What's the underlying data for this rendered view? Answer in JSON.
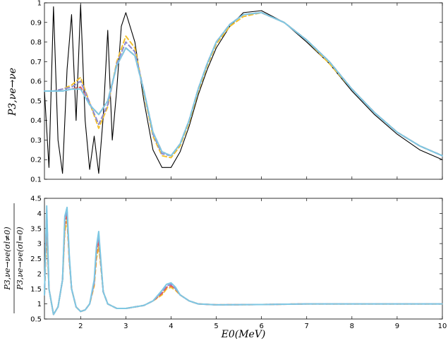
{
  "chart_data": [
    {
      "type": "line",
      "ylabel": "P3,νe→νe",
      "xlim": [
        1.2,
        10
      ],
      "ylim": [
        0.1,
        1.0
      ],
      "x_ticks": [
        "2",
        "3",
        "4",
        "5",
        "6",
        "7",
        "8",
        "9",
        "10"
      ],
      "y_ticks": [
        "0.1",
        "0.2",
        "0.3",
        "0.4",
        "0.5",
        "0.6",
        "0.7",
        "0.8",
        "0.9",
        "1"
      ],
      "grid": false,
      "series": [
        {
          "color": "#000000",
          "style": "solid",
          "x": [
            1.2,
            1.3,
            1.4,
            1.5,
            1.6,
            1.7,
            1.8,
            1.9,
            2.0,
            2.1,
            2.2,
            2.3,
            2.4,
            2.5,
            2.6,
            2.7,
            2.8,
            2.9,
            3.0,
            3.2,
            3.4,
            3.6,
            3.8,
            4.0,
            4.2,
            4.4,
            4.6,
            4.8,
            5.0,
            5.3,
            5.6,
            6.0,
            6.5,
            7.0,
            7.5,
            8.0,
            8.5,
            9.0,
            9.5,
            10.0
          ],
          "y": [
            0.55,
            0.16,
            0.98,
            0.3,
            0.13,
            0.66,
            0.94,
            0.4,
            0.99,
            0.4,
            0.15,
            0.32,
            0.13,
            0.42,
            0.86,
            0.3,
            0.56,
            0.88,
            0.95,
            0.8,
            0.5,
            0.25,
            0.16,
            0.16,
            0.24,
            0.37,
            0.53,
            0.66,
            0.77,
            0.88,
            0.95,
            0.96,
            0.9,
            0.8,
            0.69,
            0.55,
            0.43,
            0.33,
            0.25,
            0.2
          ]
        },
        {
          "color": "#f2c12e",
          "style": "dashed",
          "x": [
            1.2,
            1.4,
            1.6,
            1.8,
            2.0,
            2.2,
            2.4,
            2.6,
            2.8,
            3.0,
            3.2,
            3.4,
            3.6,
            3.8,
            4.0,
            4.2,
            4.4,
            4.6,
            4.8,
            5.0,
            5.3,
            5.6,
            6.0,
            6.5,
            7.0,
            7.5,
            8.0,
            8.5,
            9.0,
            9.5,
            10.0
          ],
          "y": [
            0.55,
            0.55,
            0.56,
            0.58,
            0.62,
            0.49,
            0.36,
            0.47,
            0.7,
            0.83,
            0.77,
            0.54,
            0.32,
            0.22,
            0.21,
            0.27,
            0.39,
            0.55,
            0.68,
            0.79,
            0.88,
            0.93,
            0.95,
            0.9,
            0.81,
            0.69,
            0.56,
            0.44,
            0.34,
            0.27,
            0.22
          ]
        },
        {
          "color": "#e8554e",
          "style": "dashed",
          "x": [
            1.2,
            1.4,
            1.6,
            1.8,
            2.0,
            2.2,
            2.4,
            2.6,
            2.8,
            3.0,
            3.2,
            3.4,
            3.6,
            3.8,
            4.0,
            4.2,
            4.4,
            4.6,
            4.8,
            5.0,
            5.3,
            5.6,
            6.0,
            6.5,
            7.0,
            7.5,
            8.0,
            8.5,
            9.0,
            9.5,
            10.0
          ],
          "y": [
            0.55,
            0.55,
            0.55,
            0.56,
            0.57,
            0.48,
            0.43,
            0.5,
            0.68,
            0.77,
            0.73,
            0.55,
            0.34,
            0.24,
            0.22,
            0.28,
            0.4,
            0.56,
            0.69,
            0.8,
            0.89,
            0.94,
            0.95,
            0.9,
            0.81,
            0.7,
            0.56,
            0.44,
            0.34,
            0.27,
            0.22
          ]
        },
        {
          "color": "#8e8ad0",
          "style": "dashed",
          "x": [
            1.2,
            1.4,
            1.6,
            1.8,
            2.0,
            2.2,
            2.4,
            2.6,
            2.8,
            3.0,
            3.2,
            3.4,
            3.6,
            3.8,
            4.0,
            4.2,
            4.4,
            4.6,
            4.8,
            5.0,
            5.3,
            5.6,
            6.0,
            6.5,
            7.0,
            7.5,
            8.0,
            8.5,
            9.0,
            9.5,
            10.0
          ],
          "y": [
            0.55,
            0.55,
            0.56,
            0.57,
            0.6,
            0.49,
            0.38,
            0.48,
            0.69,
            0.8,
            0.75,
            0.55,
            0.33,
            0.23,
            0.22,
            0.28,
            0.4,
            0.56,
            0.69,
            0.8,
            0.89,
            0.94,
            0.95,
            0.9,
            0.81,
            0.7,
            0.56,
            0.44,
            0.34,
            0.27,
            0.22
          ]
        },
        {
          "color": "#7ec8e3",
          "style": "solid",
          "x": [
            1.2,
            1.4,
            1.6,
            1.8,
            2.0,
            2.2,
            2.4,
            2.6,
            2.8,
            3.0,
            3.2,
            3.4,
            3.6,
            3.8,
            4.0,
            4.2,
            4.4,
            4.6,
            4.8,
            5.0,
            5.3,
            5.6,
            6.0,
            6.5,
            7.0,
            7.5,
            8.0,
            8.5,
            9.0,
            9.5,
            10.0
          ],
          "y": [
            0.55,
            0.55,
            0.55,
            0.56,
            0.56,
            0.48,
            0.43,
            0.5,
            0.68,
            0.77,
            0.73,
            0.55,
            0.34,
            0.24,
            0.22,
            0.28,
            0.4,
            0.56,
            0.69,
            0.8,
            0.89,
            0.94,
            0.95,
            0.9,
            0.81,
            0.7,
            0.56,
            0.44,
            0.34,
            0.27,
            0.22
          ]
        }
      ]
    },
    {
      "type": "line",
      "xlabel": "E0(MeV)",
      "ylabel_num": "P3,νe→νe(σl≠0)",
      "ylabel_den": "P3,νe→νe(σl=0)",
      "xlim": [
        1.2,
        10
      ],
      "ylim": [
        0.5,
        4.5
      ],
      "x_ticks": [
        "2",
        "3",
        "4",
        "5",
        "6",
        "7",
        "8",
        "9",
        "10"
      ],
      "y_ticks": [
        "0.5",
        "1",
        "1.5",
        "2",
        "2.5",
        "3",
        "3.5",
        "4",
        "4.5"
      ],
      "grid": false,
      "series": [
        {
          "color": "#f2c12e",
          "style": "dashed",
          "x": [
            1.2,
            1.25,
            1.3,
            1.4,
            1.5,
            1.6,
            1.65,
            1.7,
            1.75,
            1.8,
            1.9,
            2.0,
            2.1,
            2.2,
            2.3,
            2.35,
            2.4,
            2.45,
            2.5,
            2.6,
            2.8,
            3.0,
            3.2,
            3.4,
            3.6,
            3.8,
            3.9,
            4.0,
            4.1,
            4.2,
            4.4,
            4.6,
            5.0,
            6.0,
            7.0,
            8.0,
            9.0,
            10.0
          ],
          "y": [
            1.3,
            3.4,
            1.5,
            0.65,
            0.9,
            1.8,
            3.4,
            3.8,
            2.4,
            1.5,
            0.9,
            0.75,
            0.8,
            1.0,
            1.6,
            2.5,
            2.9,
            2.2,
            1.4,
            1.0,
            0.85,
            0.85,
            0.9,
            0.95,
            1.1,
            1.3,
            1.5,
            1.55,
            1.45,
            1.3,
            1.1,
            1.0,
            0.97,
            0.98,
            1.0,
            1.0,
            1.0,
            1.0
          ]
        },
        {
          "color": "#e8554e",
          "style": "dashed",
          "x": [
            1.2,
            1.25,
            1.3,
            1.4,
            1.5,
            1.6,
            1.65,
            1.7,
            1.75,
            1.8,
            1.9,
            2.0,
            2.1,
            2.2,
            2.3,
            2.35,
            2.4,
            2.45,
            2.5,
            2.6,
            2.8,
            3.0,
            3.2,
            3.4,
            3.6,
            3.8,
            3.9,
            4.0,
            4.1,
            4.2,
            4.4,
            4.6,
            5.0,
            6.0,
            7.0,
            8.0,
            9.0,
            10.0
          ],
          "y": [
            1.3,
            3.8,
            1.5,
            0.65,
            0.9,
            1.8,
            3.6,
            4.0,
            2.5,
            1.5,
            0.9,
            0.75,
            0.8,
            1.0,
            1.7,
            2.7,
            3.1,
            2.3,
            1.4,
            1.0,
            0.85,
            0.85,
            0.9,
            0.95,
            1.1,
            1.35,
            1.55,
            1.6,
            1.5,
            1.3,
            1.1,
            1.0,
            0.97,
            0.98,
            1.0,
            1.0,
            1.0,
            1.0
          ]
        },
        {
          "color": "#8e8ad0",
          "style": "dashed",
          "x": [
            1.2,
            1.25,
            1.3,
            1.4,
            1.5,
            1.6,
            1.65,
            1.7,
            1.75,
            1.8,
            1.9,
            2.0,
            2.1,
            2.2,
            2.3,
            2.35,
            2.4,
            2.45,
            2.5,
            2.6,
            2.8,
            3.0,
            3.2,
            3.4,
            3.6,
            3.8,
            3.9,
            4.0,
            4.1,
            4.2,
            4.4,
            4.6,
            5.0,
            6.0,
            7.0,
            8.0,
            9.0,
            10.0
          ],
          "y": [
            1.3,
            4.1,
            1.5,
            0.65,
            0.9,
            1.8,
            3.8,
            4.1,
            2.5,
            1.5,
            0.9,
            0.75,
            0.8,
            1.0,
            1.7,
            2.8,
            3.3,
            2.3,
            1.4,
            1.0,
            0.85,
            0.85,
            0.9,
            0.95,
            1.1,
            1.4,
            1.6,
            1.65,
            1.5,
            1.3,
            1.1,
            1.0,
            0.97,
            0.98,
            1.0,
            1.0,
            1.0,
            1.0
          ]
        },
        {
          "color": "#7ec8e3",
          "style": "solid",
          "x": [
            1.2,
            1.25,
            1.3,
            1.4,
            1.5,
            1.6,
            1.65,
            1.7,
            1.75,
            1.8,
            1.9,
            2.0,
            2.1,
            2.2,
            2.3,
            2.35,
            2.4,
            2.45,
            2.5,
            2.6,
            2.8,
            3.0,
            3.2,
            3.4,
            3.6,
            3.8,
            3.9,
            4.0,
            4.1,
            4.2,
            4.4,
            4.6,
            5.0,
            6.0,
            7.0,
            8.0,
            9.0,
            10.0
          ],
          "y": [
            1.3,
            4.25,
            1.5,
            0.65,
            0.9,
            1.8,
            3.9,
            4.2,
            2.6,
            1.5,
            0.9,
            0.75,
            0.8,
            1.0,
            1.8,
            2.9,
            3.4,
            2.4,
            1.4,
            1.0,
            0.85,
            0.85,
            0.9,
            0.95,
            1.1,
            1.45,
            1.65,
            1.7,
            1.55,
            1.3,
            1.1,
            1.0,
            0.97,
            0.98,
            1.0,
            1.0,
            1.0,
            1.0
          ]
        }
      ]
    }
  ]
}
